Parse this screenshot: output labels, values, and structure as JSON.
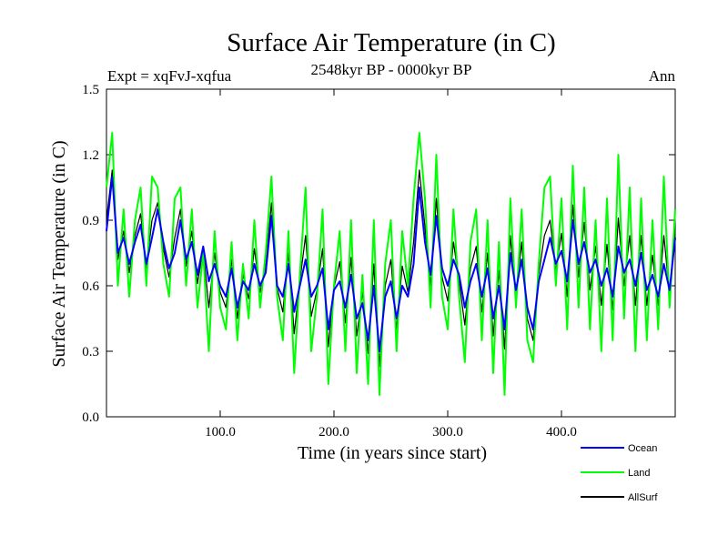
{
  "chart_data": {
    "type": "line",
    "title": "Surface Air Temperature (in C)",
    "subtitle": "2548kyr BP - 0000kyr BP",
    "left_label": "Expt = xqFvJ-xqfua",
    "right_label": "Ann",
    "xlabel": "Time (in years since start)",
    "ylabel": "Surface Air Temperature (in C)",
    "xlim": [
      0,
      500
    ],
    "ylim": [
      0,
      1.5
    ],
    "x_ticks": [
      100,
      200,
      300,
      400
    ],
    "x_tick_labels": [
      "100.0",
      "200.0",
      "300.0",
      "400.0"
    ],
    "y_ticks": [
      0,
      0.3,
      0.6,
      0.9,
      1.2,
      1.5
    ],
    "y_tick_labels": [
      "0.0",
      "0.3",
      "0.6",
      "0.9",
      "1.2",
      "1.5"
    ],
    "grid": false,
    "legend_position": "bottom-right",
    "x": [
      0,
      5,
      10,
      15,
      20,
      25,
      30,
      35,
      40,
      45,
      50,
      55,
      60,
      65,
      70,
      75,
      80,
      85,
      90,
      95,
      100,
      105,
      110,
      115,
      120,
      125,
      130,
      135,
      140,
      145,
      150,
      155,
      160,
      165,
      170,
      175,
      180,
      185,
      190,
      195,
      200,
      205,
      210,
      215,
      220,
      225,
      230,
      235,
      240,
      245,
      250,
      255,
      260,
      265,
      270,
      275,
      280,
      285,
      290,
      295,
      300,
      305,
      310,
      315,
      320,
      325,
      330,
      335,
      340,
      345,
      350,
      355,
      360,
      365,
      370,
      375,
      380,
      385,
      390,
      395,
      400,
      405,
      410,
      415,
      420,
      425,
      430,
      435,
      440,
      445,
      450,
      455,
      460,
      465,
      470,
      475,
      480,
      485,
      490,
      495,
      500
    ],
    "series": [
      {
        "name": "Ocean",
        "color": "#0000ff",
        "values": [
          0.85,
          1.1,
          0.75,
          0.82,
          0.7,
          0.8,
          0.88,
          0.7,
          0.82,
          0.95,
          0.8,
          0.68,
          0.75,
          0.9,
          0.72,
          0.8,
          0.65,
          0.78,
          0.62,
          0.7,
          0.6,
          0.55,
          0.68,
          0.5,
          0.62,
          0.58,
          0.7,
          0.6,
          0.66,
          0.92,
          0.6,
          0.55,
          0.7,
          0.48,
          0.6,
          0.72,
          0.55,
          0.6,
          0.68,
          0.4,
          0.58,
          0.62,
          0.5,
          0.65,
          0.45,
          0.52,
          0.35,
          0.6,
          0.3,
          0.55,
          0.62,
          0.45,
          0.6,
          0.55,
          0.7,
          1.05,
          0.8,
          0.65,
          0.92,
          0.68,
          0.6,
          0.72,
          0.65,
          0.5,
          0.62,
          0.7,
          0.55,
          0.68,
          0.45,
          0.6,
          0.4,
          0.75,
          0.58,
          0.72,
          0.5,
          0.4,
          0.62,
          0.72,
          0.82,
          0.7,
          0.76,
          0.62,
          0.9,
          0.7,
          0.8,
          0.66,
          0.72,
          0.6,
          0.68,
          0.55,
          0.78,
          0.66,
          0.72,
          0.6,
          0.75,
          0.58,
          0.65,
          0.55,
          0.7,
          0.58,
          0.82
        ]
      },
      {
        "name": "Land",
        "color": "#00ff00",
        "values": [
          1.05,
          1.3,
          0.6,
          0.95,
          0.55,
          0.9,
          1.05,
          0.6,
          1.1,
          1.05,
          0.7,
          0.55,
          1.0,
          1.05,
          0.6,
          0.95,
          0.5,
          0.75,
          0.3,
          0.85,
          0.5,
          0.4,
          0.8,
          0.35,
          0.7,
          0.45,
          0.9,
          0.5,
          0.75,
          1.1,
          0.55,
          0.35,
          0.85,
          0.2,
          0.65,
          1.05,
          0.3,
          0.55,
          0.95,
          0.15,
          0.6,
          0.85,
          0.3,
          0.9,
          0.2,
          0.65,
          0.15,
          0.9,
          0.1,
          0.7,
          0.9,
          0.3,
          0.85,
          0.6,
          1.0,
          1.3,
          1.0,
          0.5,
          1.2,
          0.55,
          0.4,
          0.95,
          0.55,
          0.25,
          0.8,
          0.95,
          0.35,
          0.9,
          0.2,
          0.8,
          0.1,
          1.0,
          0.5,
          0.95,
          0.35,
          0.25,
          0.7,
          1.05,
          1.1,
          0.6,
          1.0,
          0.4,
          1.15,
          0.5,
          1.05,
          0.4,
          0.9,
          0.3,
          1.0,
          0.35,
          1.2,
          0.45,
          1.05,
          0.3,
          1.0,
          0.35,
          0.9,
          0.4,
          1.1,
          0.5,
          0.95
        ]
      },
      {
        "name": "AllSurf",
        "color": "#000000",
        "values": [
          0.9,
          1.13,
          0.72,
          0.85,
          0.66,
          0.83,
          0.93,
          0.68,
          0.9,
          0.98,
          0.77,
          0.64,
          0.82,
          0.95,
          0.69,
          0.85,
          0.61,
          0.77,
          0.5,
          0.75,
          0.57,
          0.5,
          0.72,
          0.45,
          0.65,
          0.54,
          0.77,
          0.57,
          0.69,
          0.98,
          0.59,
          0.48,
          0.75,
          0.38,
          0.62,
          0.83,
          0.46,
          0.58,
          0.77,
          0.32,
          0.59,
          0.71,
          0.43,
          0.73,
          0.37,
          0.57,
          0.29,
          0.7,
          0.23,
          0.6,
          0.72,
          0.4,
          0.69,
          0.57,
          0.8,
          1.13,
          0.87,
          0.6,
          1.0,
          0.64,
          0.53,
          0.8,
          0.62,
          0.42,
          0.68,
          0.78,
          0.48,
          0.75,
          0.37,
          0.67,
          0.31,
          0.83,
          0.55,
          0.8,
          0.45,
          0.35,
          0.65,
          0.83,
          0.9,
          0.67,
          0.84,
          0.55,
          0.97,
          0.64,
          0.89,
          0.58,
          0.78,
          0.51,
          0.79,
          0.49,
          0.91,
          0.6,
          0.83,
          0.51,
          0.83,
          0.51,
          0.74,
          0.51,
          0.83,
          0.56,
          0.86
        ]
      }
    ]
  }
}
